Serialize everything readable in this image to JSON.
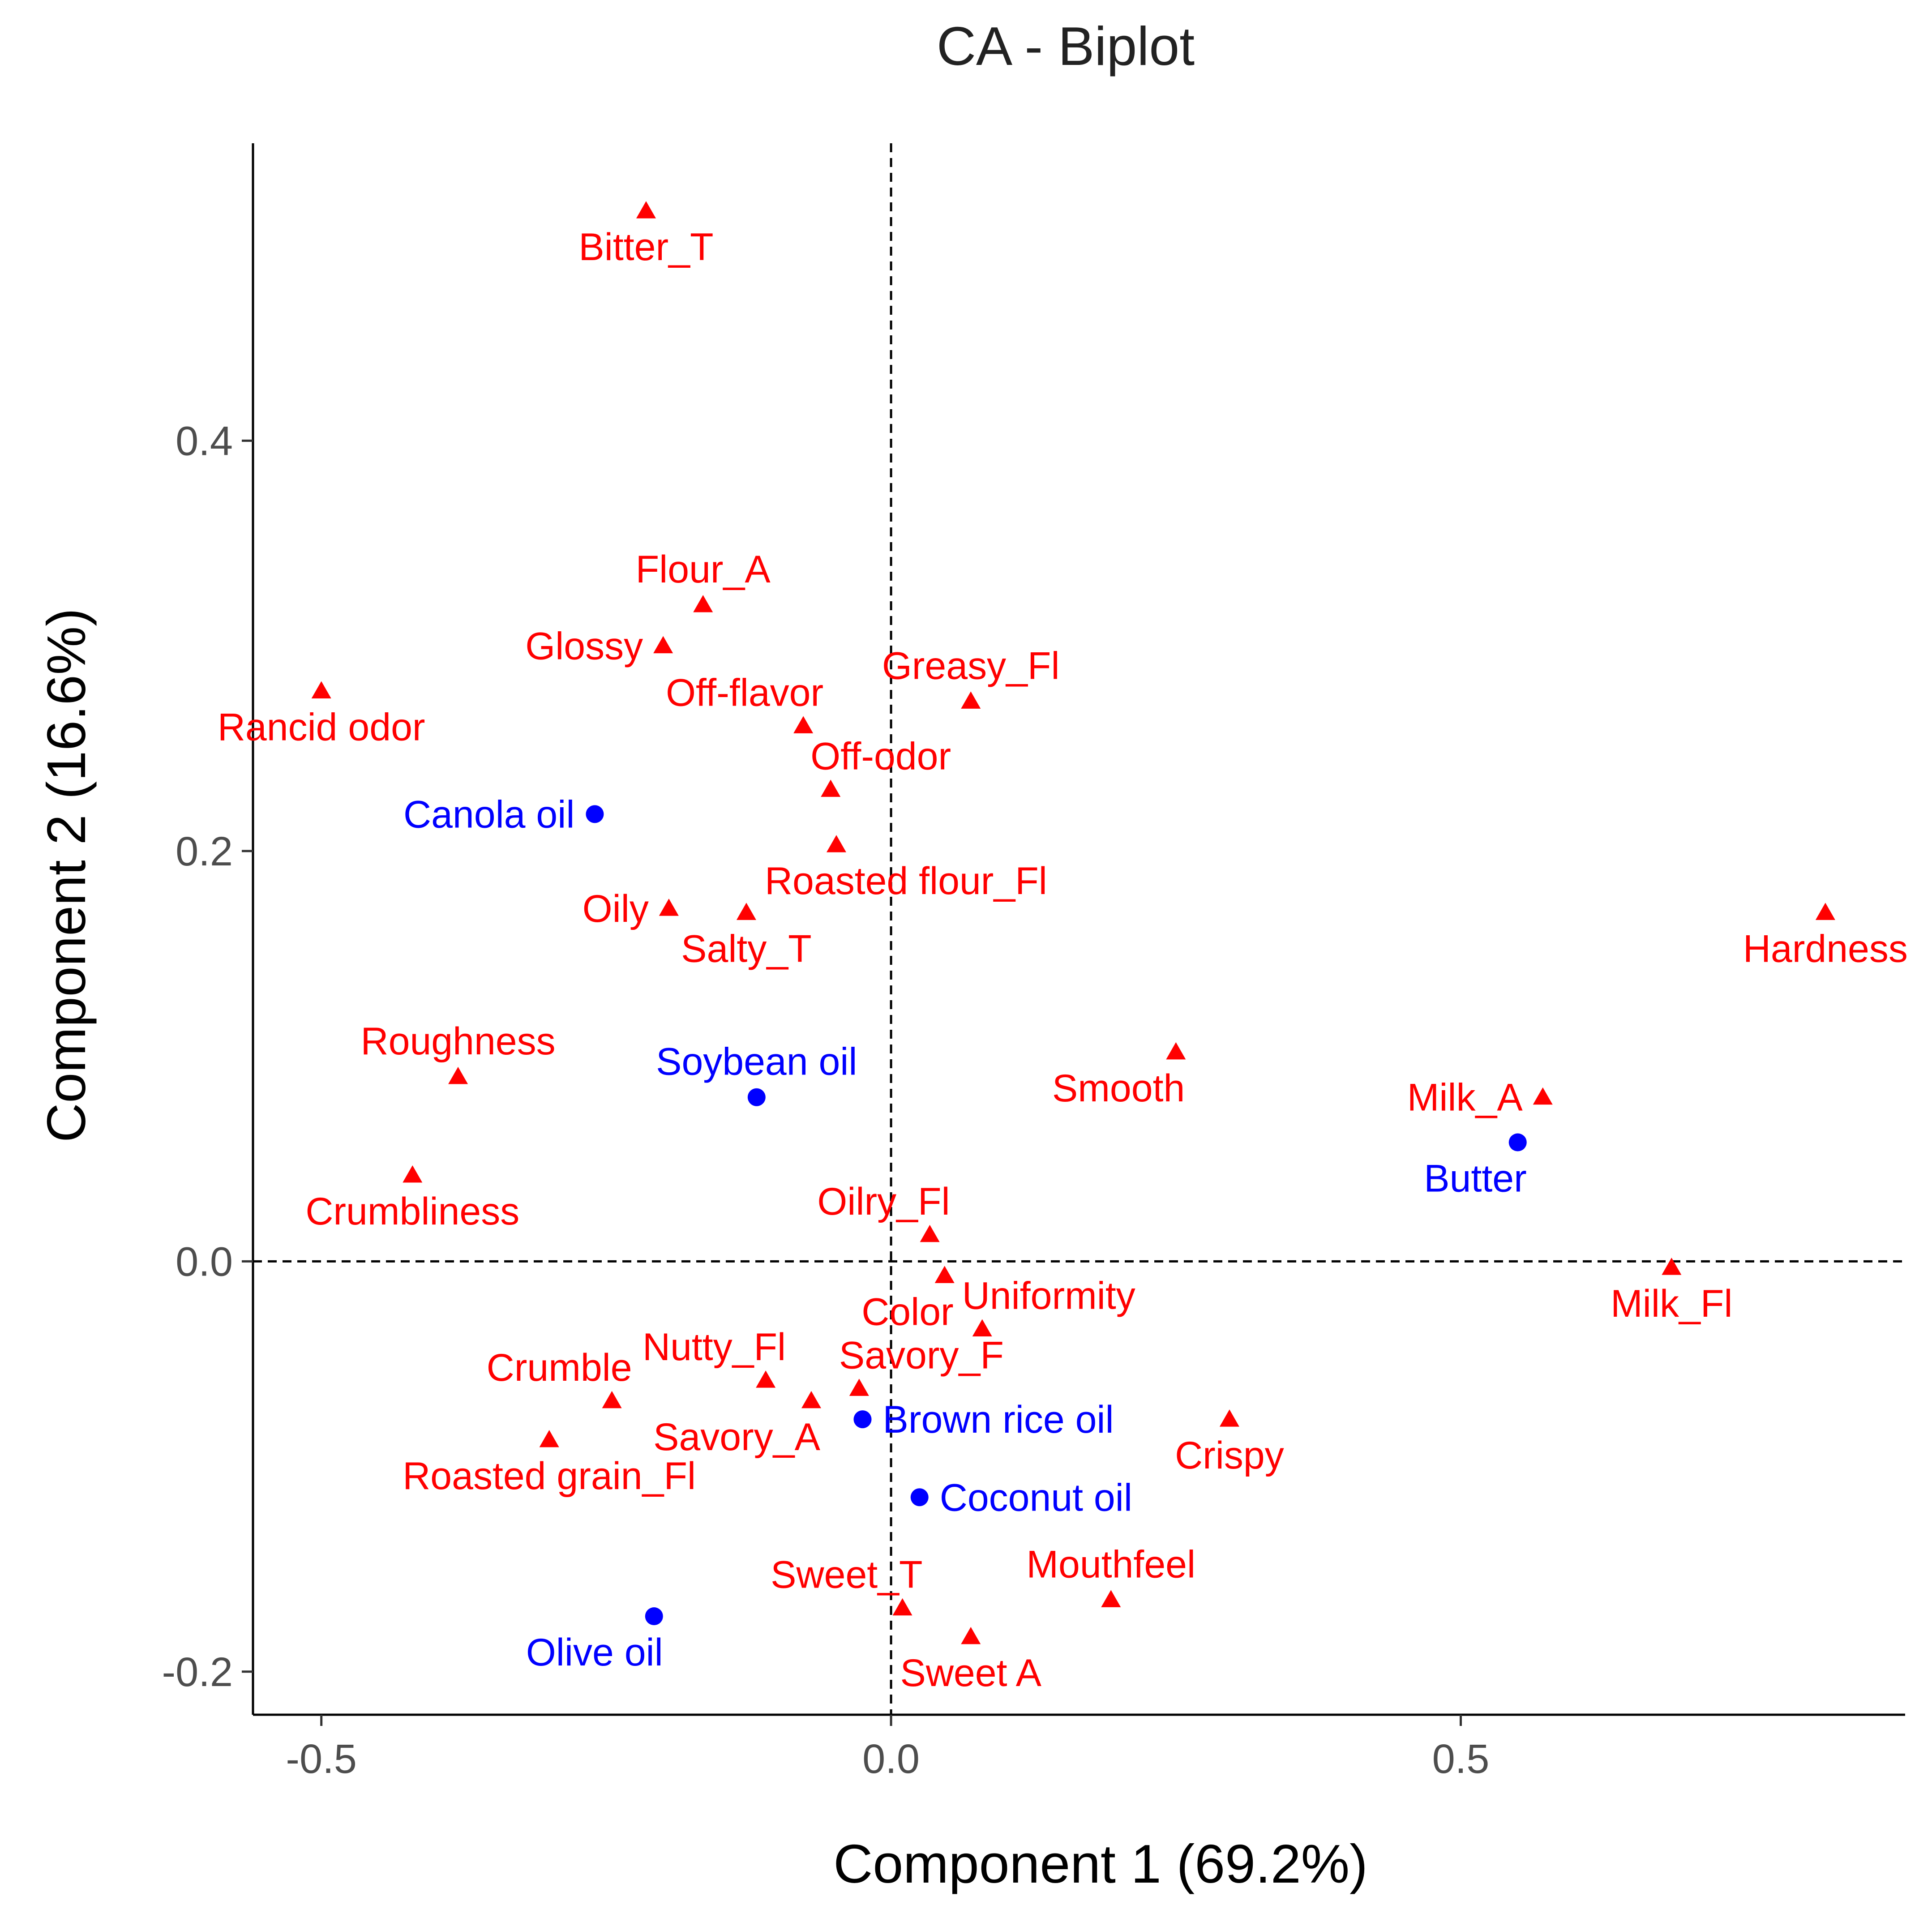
{
  "chart_data": {
    "type": "scatter",
    "title": "CA - Biplot",
    "xlabel": "Component 1 (69.2%)",
    "ylabel": "Component 2 (16.6%)",
    "xlim": [
      -0.56,
      0.89
    ],
    "ylim": [
      -0.221,
      0.545
    ],
    "x_ticks": [
      -0.5,
      0.0,
      0.5
    ],
    "x_tick_labels": [
      "-0.5",
      "0.0",
      "0.5"
    ],
    "y_ticks": [
      -0.2,
      0.0,
      0.2,
      0.4
    ],
    "y_tick_labels": [
      "-0.2",
      "0.0",
      "0.2",
      "0.4"
    ],
    "grid": false,
    "reference_lines": {
      "x": 0,
      "y": 0,
      "style": "dashed"
    },
    "colors": {
      "attribute": "#ff0000",
      "sample": "#0000ff"
    },
    "series": [
      {
        "marker": "triangle",
        "points": [
          {
            "label": "Bitter_T",
            "x": -0.215,
            "y": 0.512,
            "pos": "below"
          },
          {
            "label": "Flour_A",
            "x": -0.165,
            "y": 0.32,
            "pos": "above"
          },
          {
            "label": "Glossy",
            "x": -0.2,
            "y": 0.3,
            "pos": "left"
          },
          {
            "label": "Rancid odor",
            "x": -0.5,
            "y": 0.278,
            "pos": "below"
          },
          {
            "label": "Off-flavor",
            "x": -0.077,
            "y": 0.261,
            "pos": "aboveleft"
          },
          {
            "label": "Greasy_Fl",
            "x": 0.07,
            "y": 0.273,
            "pos": "above"
          },
          {
            "label": "Off-odor",
            "x": -0.053,
            "y": 0.23,
            "pos": "aboveright"
          },
          {
            "label": "Roasted flour_Fl",
            "x": -0.048,
            "y": 0.203,
            "pos": "belowright"
          },
          {
            "label": "Oily",
            "x": -0.195,
            "y": 0.172,
            "pos": "left"
          },
          {
            "label": "Salty_T",
            "x": -0.127,
            "y": 0.17,
            "pos": "below"
          },
          {
            "label": "Hardness",
            "x": 0.82,
            "y": 0.17,
            "pos": "below"
          },
          {
            "label": "Roughness",
            "x": -0.38,
            "y": 0.09,
            "pos": "above"
          },
          {
            "label": "Smooth",
            "x": 0.25,
            "y": 0.102,
            "pos": "belowleft"
          },
          {
            "label": "Milk_A",
            "x": 0.572,
            "y": 0.08,
            "pos": "left"
          },
          {
            "label": "Crumbliness",
            "x": -0.42,
            "y": 0.042,
            "pos": "below"
          },
          {
            "label": "Oilry_Fl",
            "x": 0.034,
            "y": 0.013,
            "pos": "aboveleft"
          },
          {
            "label": "Milk_Fl",
            "x": 0.685,
            "y": -0.003,
            "pos": "below"
          },
          {
            "label": "Color",
            "x": 0.047,
            "y": -0.007,
            "pos": "belowleft"
          },
          {
            "label": "Uniformity",
            "x": 0.08,
            "y": -0.033,
            "pos": "aboveright"
          },
          {
            "label": "Nutty_Fl",
            "x": -0.11,
            "y": -0.058,
            "pos": "aboveleft"
          },
          {
            "label": "Savory_F",
            "x": -0.028,
            "y": -0.062,
            "pos": "aboveright"
          },
          {
            "label": "Crumble",
            "x": -0.245,
            "y": -0.068,
            "pos": "aboveleft"
          },
          {
            "label": "Savory_A",
            "x": -0.07,
            "y": -0.068,
            "pos": "belowleft"
          },
          {
            "label": "Crispy",
            "x": 0.297,
            "y": -0.077,
            "pos": "below"
          },
          {
            "label": "Roasted grain_Fl",
            "x": -0.3,
            "y": -0.087,
            "pos": "below"
          },
          {
            "label": "Mouthfeel",
            "x": 0.193,
            "y": -0.165,
            "pos": "above"
          },
          {
            "label": "Sweet_T",
            "x": 0.01,
            "y": -0.169,
            "pos": "aboveleft"
          },
          {
            "label": "Sweet A",
            "x": 0.07,
            "y": -0.183,
            "pos": "below"
          }
        ]
      },
      {
        "marker": "circle",
        "points": [
          {
            "label": "Canola oil",
            "x": -0.26,
            "y": 0.218,
            "pos": "left"
          },
          {
            "label": "Soybean oil",
            "x": -0.118,
            "y": 0.08,
            "pos": "above"
          },
          {
            "label": "Butter",
            "x": 0.55,
            "y": 0.058,
            "pos": "belowleft"
          },
          {
            "label": "Brown rice oil",
            "x": -0.025,
            "y": -0.077,
            "pos": "right"
          },
          {
            "label": "Coconut oil",
            "x": 0.025,
            "y": -0.115,
            "pos": "right"
          },
          {
            "label": "Olive oil",
            "x": -0.208,
            "y": -0.173,
            "pos": "belowleft"
          }
        ]
      }
    ]
  }
}
